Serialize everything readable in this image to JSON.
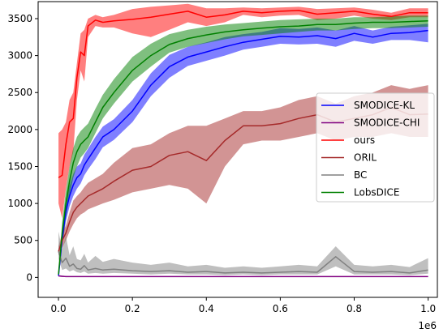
{
  "chart_data": {
    "type": "line",
    "title": "",
    "xlabel": "",
    "ylabel": "",
    "x_offset_text": "1e6",
    "xlim": [
      -0.055,
      1.025
    ],
    "ylim": [
      -270,
      3730
    ],
    "xticks": [
      0.0,
      0.2,
      0.4,
      0.6,
      0.8,
      1.0
    ],
    "xtick_labels": [
      "0.0",
      "0.2",
      "0.4",
      "0.6",
      "0.8",
      "1.0"
    ],
    "yticks": [
      0,
      500,
      1000,
      1500,
      2000,
      2500,
      3000,
      3500
    ],
    "ytick_labels": [
      "0",
      "500",
      "1000",
      "1500",
      "2000",
      "2500",
      "3000",
      "3500"
    ],
    "grid": false,
    "legend_position": "center-right",
    "x": [
      0,
      0.01,
      0.02,
      0.03,
      0.04,
      0.05,
      0.06,
      0.07,
      0.08,
      0.1,
      0.12,
      0.15,
      0.2,
      0.25,
      0.3,
      0.35,
      0.4,
      0.45,
      0.5,
      0.55,
      0.6,
      0.65,
      0.7,
      0.75,
      0.8,
      0.85,
      0.9,
      0.95,
      1.0
    ],
    "series": [
      {
        "name": "SMODICE-KL",
        "color": "#0000ff",
        "mean": [
          20,
          520,
          900,
          1100,
          1250,
          1350,
          1400,
          1520,
          1600,
          1750,
          1900,
          2000,
          2250,
          2600,
          2850,
          2980,
          3050,
          3120,
          3180,
          3220,
          3260,
          3250,
          3270,
          3230,
          3300,
          3250,
          3300,
          3310,
          3340
        ],
        "lower": [
          10,
          420,
          760,
          960,
          1100,
          1200,
          1270,
          1380,
          1460,
          1600,
          1760,
          1860,
          2100,
          2450,
          2700,
          2860,
          2930,
          3000,
          3080,
          3120,
          3160,
          3150,
          3160,
          3120,
          3200,
          3160,
          3210,
          3210,
          3180
        ],
        "upper": [
          30,
          640,
          1030,
          1240,
          1400,
          1500,
          1540,
          1660,
          1740,
          1900,
          2040,
          2140,
          2400,
          2760,
          3010,
          3120,
          3180,
          3250,
          3290,
          3320,
          3370,
          3360,
          3380,
          3340,
          3400,
          3340,
          3390,
          3410,
          3430
        ]
      },
      {
        "name": "SMODICE-CHI",
        "color": "#800080",
        "mean": [
          20,
          15,
          10,
          10,
          10,
          10,
          10,
          10,
          10,
          10,
          10,
          10,
          10,
          10,
          10,
          10,
          10,
          10,
          10,
          10,
          10,
          10,
          10,
          10,
          10,
          10,
          10,
          10,
          10
        ],
        "lower": [
          10,
          5,
          5,
          5,
          5,
          5,
          5,
          5,
          5,
          5,
          5,
          5,
          5,
          5,
          5,
          5,
          5,
          5,
          5,
          5,
          5,
          5,
          5,
          5,
          5,
          5,
          5,
          5,
          5
        ],
        "upper": [
          30,
          25,
          18,
          15,
          15,
          15,
          15,
          15,
          15,
          15,
          15,
          15,
          15,
          15,
          15,
          15,
          15,
          15,
          15,
          15,
          15,
          15,
          15,
          15,
          15,
          15,
          15,
          15,
          15
        ]
      },
      {
        "name": "ours",
        "color": "#ff0000",
        "mean": [
          1350,
          1380,
          1800,
          2100,
          2150,
          2700,
          3050,
          3000,
          3400,
          3480,
          3450,
          3470,
          3490,
          3520,
          3560,
          3600,
          3520,
          3550,
          3600,
          3580,
          3600,
          3610,
          3560,
          3580,
          3600,
          3560,
          3530,
          3580,
          3580
        ],
        "lower": [
          1000,
          800,
          1200,
          1500,
          1700,
          2400,
          2800,
          2650,
          3250,
          3400,
          3380,
          3380,
          3300,
          3250,
          3350,
          3450,
          3400,
          3450,
          3550,
          3520,
          3540,
          3550,
          3480,
          3500,
          3540,
          3500,
          3480,
          3520,
          3520
        ],
        "upper": [
          1950,
          2000,
          2100,
          2400,
          2500,
          2900,
          3300,
          3350,
          3500,
          3550,
          3520,
          3550,
          3630,
          3660,
          3680,
          3700,
          3640,
          3640,
          3650,
          3640,
          3650,
          3660,
          3630,
          3640,
          3650,
          3620,
          3580,
          3640,
          3640
        ]
      },
      {
        "name": "ORIL",
        "color": "#a52a2a",
        "mean": [
          350,
          500,
          600,
          750,
          880,
          950,
          1000,
          1050,
          1100,
          1150,
          1200,
          1300,
          1450,
          1500,
          1650,
          1700,
          1580,
          1850,
          2050,
          2050,
          2080,
          2150,
          2200,
          2100,
          2150,
          2200,
          2300,
          2200,
          2210
        ],
        "lower": [
          300,
          400,
          500,
          620,
          720,
          800,
          850,
          880,
          920,
          960,
          1000,
          1050,
          1150,
          1200,
          1250,
          1200,
          1000,
          1500,
          1800,
          1850,
          1850,
          1900,
          1950,
          1850,
          1900,
          1900,
          1950,
          1900,
          1900
        ],
        "upper": [
          420,
          600,
          700,
          880,
          1040,
          1100,
          1150,
          1220,
          1280,
          1340,
          1400,
          1550,
          1750,
          1800,
          1950,
          2050,
          2050,
          2150,
          2250,
          2250,
          2300,
          2400,
          2450,
          2350,
          2450,
          2500,
          2600,
          2550,
          2600
        ]
      },
      {
        "name": "BC",
        "color": "#808080",
        "mean": [
          350,
          200,
          260,
          150,
          180,
          120,
          110,
          160,
          100,
          120,
          100,
          110,
          90,
          80,
          90,
          70,
          80,
          60,
          70,
          60,
          70,
          80,
          70,
          280,
          80,
          70,
          80,
          60,
          100
        ],
        "lower": [
          250,
          100,
          120,
          80,
          100,
          70,
          60,
          80,
          50,
          60,
          50,
          60,
          50,
          40,
          50,
          40,
          40,
          30,
          40,
          30,
          40,
          40,
          40,
          150,
          40,
          40,
          40,
          30,
          50
        ],
        "upper": [
          620,
          380,
          560,
          300,
          420,
          250,
          230,
          320,
          200,
          290,
          210,
          250,
          200,
          170,
          200,
          150,
          170,
          130,
          150,
          130,
          150,
          170,
          150,
          420,
          170,
          150,
          170,
          140,
          260
        ]
      },
      {
        "name": "LobsDICE",
        "color": "#008000",
        "mean": [
          40,
          600,
          1000,
          1300,
          1550,
          1700,
          1800,
          1850,
          1900,
          2100,
          2300,
          2500,
          2800,
          3000,
          3150,
          3230,
          3280,
          3320,
          3350,
          3370,
          3390,
          3400,
          3420,
          3420,
          3440,
          3450,
          3450,
          3460,
          3470
        ],
        "lower": [
          20,
          450,
          800,
          1100,
          1350,
          1500,
          1620,
          1680,
          1750,
          1950,
          2150,
          2350,
          2650,
          2850,
          3040,
          3120,
          3170,
          3220,
          3260,
          3280,
          3300,
          3320,
          3340,
          3340,
          3360,
          3370,
          3370,
          3380,
          3390
        ],
        "upper": [
          70,
          750,
          1180,
          1500,
          1750,
          1900,
          1980,
          2030,
          2080,
          2280,
          2470,
          2680,
          2980,
          3160,
          3290,
          3350,
          3390,
          3420,
          3440,
          3460,
          3480,
          3490,
          3500,
          3500,
          3520,
          3520,
          3530,
          3540,
          3540
        ]
      }
    ]
  }
}
